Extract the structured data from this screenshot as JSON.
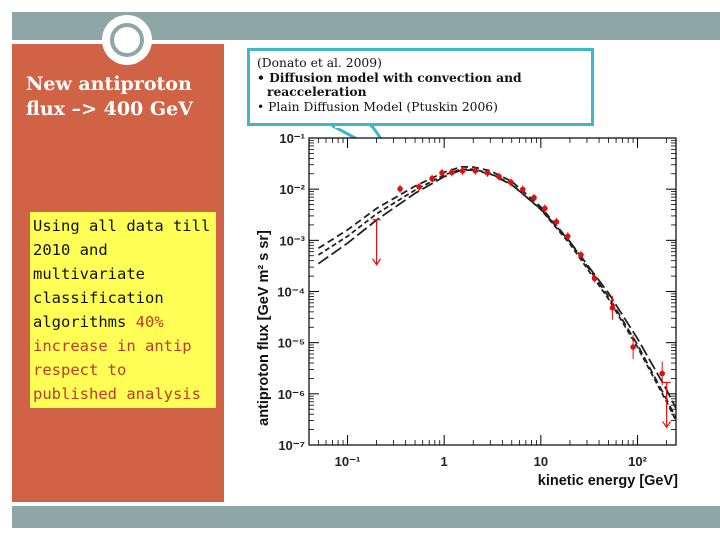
{
  "slide": {
    "title": "New antiproton flux –> 400 GeV",
    "callout_text": "Using all data till 2010 and multivariate classification algorithms",
    "callout_highlight": "40% increase in antip respect to published analysis",
    "note_line1": "(Donato et al. 2009)",
    "note_line2": "• Diffusion model with convection and",
    "note_line3": "reacceleration",
    "note_line4": "• Plain Diffusion Model (Ptuskin 2006)"
  },
  "colors": {
    "accent_bar": "#8ea6a6",
    "left_panel": "#d06345",
    "callout_bg": "#ffff55",
    "callout_highlight": "#c0392b",
    "note_border": "#3fb7c9",
    "data_points": "#dd1111"
  },
  "chart_data": {
    "type": "scatter",
    "xlabel": "kinetic energy [GeV]",
    "ylabel": "antiproton flux [GeV m² s sr]",
    "xscale": "log",
    "yscale": "log",
    "xlim": [
      0.04,
      250
    ],
    "ylim": [
      1e-07,
      0.1
    ],
    "x_tick_labels": [
      "10⁻¹",
      "1",
      "10",
      "10²"
    ],
    "y_tick_labels": [
      "10⁻¹",
      "10⁻²",
      "10⁻³",
      "10⁻⁴",
      "10⁻⁵",
      "10⁻⁶",
      "10⁻⁷"
    ],
    "data": [
      {
        "x": 0.2,
        "y": 0.0005,
        "upper_limit": true
      },
      {
        "x": 0.35,
        "y": 0.0101
      },
      {
        "x": 0.55,
        "y": 0.0111
      },
      {
        "x": 0.75,
        "y": 0.0161
      },
      {
        "x": 0.95,
        "y": 0.0208
      },
      {
        "x": 1.2,
        "y": 0.0213
      },
      {
        "x": 1.55,
        "y": 0.0228
      },
      {
        "x": 2.1,
        "y": 0.0229
      },
      {
        "x": 2.8,
        "y": 0.0208
      },
      {
        "x": 3.7,
        "y": 0.0175
      },
      {
        "x": 4.9,
        "y": 0.0136
      },
      {
        "x": 6.5,
        "y": 0.0099
      },
      {
        "x": 8.5,
        "y": 0.0068
      },
      {
        "x": 11,
        "y": 0.0042
      },
      {
        "x": 14.5,
        "y": 0.0023
      },
      {
        "x": 19,
        "y": 0.0012
      },
      {
        "x": 26,
        "y": 0.00052
      },
      {
        "x": 36,
        "y": 0.00018
      },
      {
        "x": 55,
        "y": 4.8e-05
      },
      {
        "x": 90,
        "y": 8.2e-06
      },
      {
        "x": 180,
        "y": 2.5e-06
      },
      {
        "x": 200,
        "y": 3.3e-07,
        "upper_limit": true
      }
    ],
    "models": [
      {
        "dash": "7,4",
        "points": [
          [
            0.05,
            0.0007
          ],
          [
            0.1,
            0.0016
          ],
          [
            0.2,
            0.0042
          ],
          [
            0.5,
            0.0115
          ],
          [
            1,
            0.0215
          ],
          [
            1.5,
            0.0272
          ],
          [
            2,
            0.0271
          ],
          [
            3,
            0.0229
          ],
          [
            5,
            0.0142
          ],
          [
            10,
            0.0045
          ],
          [
            20,
            0.00094
          ],
          [
            50,
            8e-05
          ],
          [
            100,
            9.1e-06
          ],
          [
            200,
            7.8e-07
          ],
          [
            250,
            3.3e-07
          ]
        ]
      },
      {
        "dash": "5,3",
        "points": [
          [
            0.05,
            0.00052
          ],
          [
            0.1,
            0.0012
          ],
          [
            0.2,
            0.0033
          ],
          [
            0.5,
            0.0096
          ],
          [
            1,
            0.019
          ],
          [
            1.5,
            0.0245
          ],
          [
            2,
            0.0244
          ],
          [
            3,
            0.0203
          ],
          [
            5,
            0.0125
          ],
          [
            10,
            0.004
          ],
          [
            20,
            0.00085
          ],
          [
            50,
            7.2e-05
          ],
          [
            100,
            8.2e-06
          ],
          [
            200,
            7e-07
          ],
          [
            250,
            3e-07
          ]
        ]
      },
      {
        "dash": "12,4",
        "points": [
          [
            0.05,
            0.00035
          ],
          [
            0.1,
            0.00088
          ],
          [
            0.2,
            0.0025
          ],
          [
            0.5,
            0.0083
          ],
          [
            1,
            0.0176
          ],
          [
            1.5,
            0.0235
          ],
          [
            2,
            0.0237
          ],
          [
            3,
            0.0198
          ],
          [
            5,
            0.0122
          ],
          [
            10,
            0.0041
          ],
          [
            20,
            0.00094
          ],
          [
            50,
            9.4e-05
          ],
          [
            100,
            1.2e-05
          ],
          [
            200,
            1.2e-06
          ],
          [
            250,
            5.2e-07
          ]
        ]
      }
    ]
  }
}
